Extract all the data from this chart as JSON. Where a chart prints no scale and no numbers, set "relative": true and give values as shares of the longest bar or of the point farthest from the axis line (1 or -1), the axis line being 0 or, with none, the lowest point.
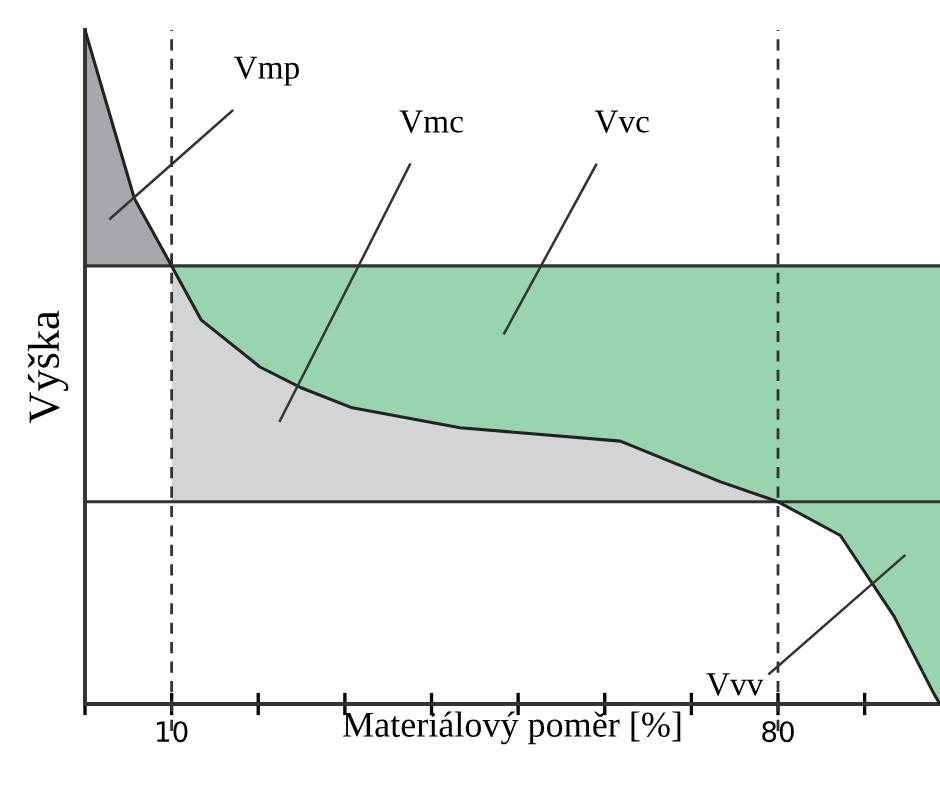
{
  "chart_data": {
    "type": "line",
    "relative": true,
    "xlabel": "Materiálový poměr [%]",
    "ylabel": "Výška",
    "xlim": [
      0,
      98.7
    ],
    "xticks": [
      {
        "value": 0,
        "label": null
      },
      10,
      {
        "value": 20,
        "label": null
      },
      {
        "value": 30,
        "label": null
      },
      {
        "value": 40,
        "label": null
      },
      {
        "value": 50,
        "label": null
      },
      {
        "value": 60,
        "label": null
      },
      {
        "value": 70,
        "label": null
      },
      80,
      {
        "value": 90,
        "label": null
      }
    ],
    "grid": false,
    "legend": false,
    "marker": "none",
    "series": [
      {
        "type": "area",
        "color": "#a7a8ab",
        "x": [
          0,
          5.7,
          10,
          0,
          0
        ],
        "values": [
          1.0,
          0.75,
          0.65,
          0.65,
          0.65
        ]
      },
      {
        "type": "area",
        "color": "#d3d4d6",
        "x": [
          10,
          13.4,
          20.2,
          24.8,
          30.7,
          43.3,
          61.8,
          73.3,
          80,
          10,
          10
        ],
        "values": [
          0.65,
          0.57,
          0.5,
          0.47,
          0.44,
          0.41,
          0.39,
          0.33,
          0.3,
          0.3,
          0.3
        ]
      },
      {
        "type": "area",
        "color": "#98d4ae",
        "x": [
          10,
          13.4,
          20.2,
          24.8,
          30.7,
          43.3,
          61.8,
          73.3,
          80,
          87.2,
          93.4,
          98,
          98.7,
          98.7,
          10
        ],
        "values": [
          0.65,
          0.57,
          0.5,
          0.47,
          0.44,
          0.41,
          0.39,
          0.33,
          0.3,
          0.25,
          0.13,
          0.015,
          0,
          0.65,
          0.65
        ]
      },
      {
        "color": "#222222",
        "x": [
          0,
          5.7,
          10,
          13.4,
          20.2,
          24.8,
          30.7,
          43.3,
          61.8,
          73.3,
          80,
          87.2,
          93.4,
          98,
          98.7
        ],
        "values": [
          1.0,
          0.75,
          0.65,
          0.57,
          0.5,
          0.47,
          0.44,
          0.41,
          0.39,
          0.33,
          0.3,
          0.25,
          0.13,
          0.015,
          0
        ]
      }
    ],
    "ref_lines": [
      {
        "axis": "y",
        "value": 0.65,
        "color": "#333333",
        "line_style": "solid"
      },
      {
        "axis": "y",
        "value": 0.3,
        "color": "#333333",
        "line_style": "solid"
      },
      {
        "axis": "x",
        "value": 10,
        "color": "#333333",
        "line_style": "dashed"
      },
      {
        "axis": "x",
        "value": 80,
        "color": "#333333",
        "line_style": "dashed"
      }
    ],
    "annotations": [
      "Vmp",
      "Vmc",
      "Vvc",
      "Vvv"
    ]
  }
}
